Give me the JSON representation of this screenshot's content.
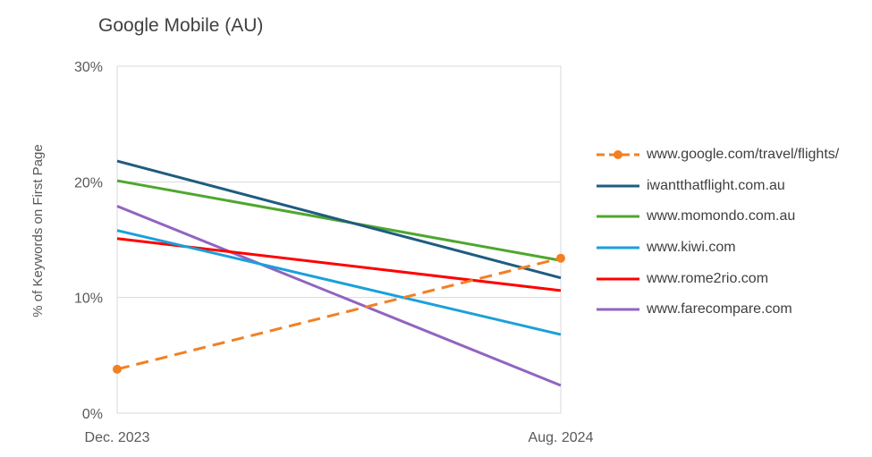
{
  "chart_data": {
    "type": "line",
    "title": "Google Mobile (AU)",
    "xlabel": "",
    "ylabel": "% of Keywords on First Page",
    "categories": [
      "Dec. 2023",
      "Aug. 2024"
    ],
    "ylim": [
      0,
      30
    ],
    "yticks": [
      0,
      10,
      20,
      30
    ],
    "ytick_labels": [
      "0%",
      "10%",
      "20%",
      "30%"
    ],
    "grid": true,
    "legend_position": "right",
    "series": [
      {
        "name": "www.google.com/travel/flights/",
        "values": [
          3.8,
          13.4
        ],
        "color": "#F28023",
        "dashed": true,
        "markers": true
      },
      {
        "name": "iwantthatflight.com.au",
        "values": [
          21.8,
          11.7
        ],
        "color": "#1F5C80",
        "dashed": false,
        "markers": false
      },
      {
        "name": "www.momondo.com.au",
        "values": [
          20.1,
          13.2
        ],
        "color": "#4EA72E",
        "dashed": false,
        "markers": false
      },
      {
        "name": "www.kiwi.com",
        "values": [
          15.8,
          6.8
        ],
        "color": "#1AA0DB",
        "dashed": false,
        "markers": false
      },
      {
        "name": "www.rome2rio.com",
        "values": [
          15.1,
          10.6
        ],
        "color": "#FF0000",
        "dashed": false,
        "markers": false
      },
      {
        "name": "www.farecompare.com",
        "values": [
          17.9,
          2.4
        ],
        "color": "#9164C0",
        "dashed": false,
        "markers": false
      }
    ]
  }
}
